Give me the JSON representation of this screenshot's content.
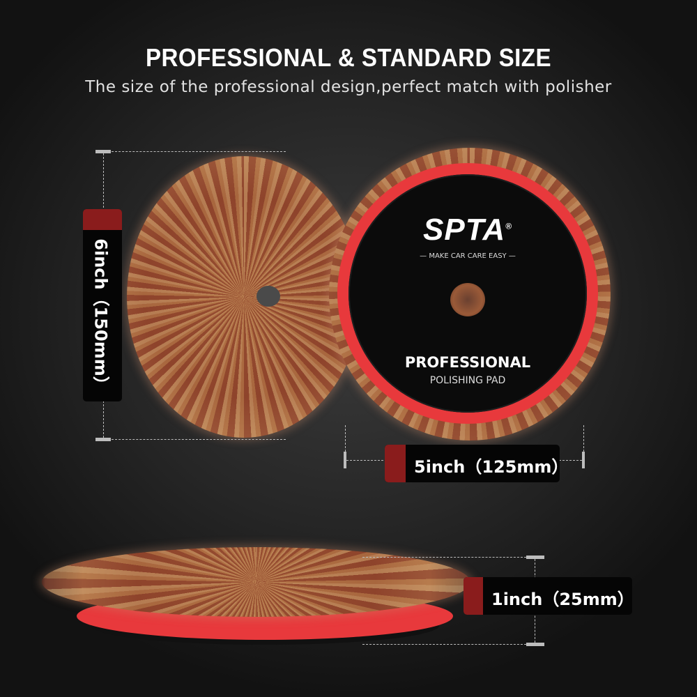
{
  "header": {
    "title": "PROFESSIONAL & STANDARD SIZE",
    "subtitle": "The size of the professional design,perfect match with polisher"
  },
  "pad_face": {
    "brand": "SPTA",
    "registered_mark": "®",
    "tagline": "MAKE CAR CARE EASY",
    "line1": "PROFESSIONAL",
    "line2": "POLISHING PAD"
  },
  "dimensions": {
    "outer_diameter": "6inch（150mm）",
    "backing_diameter": "5inch（125mm）",
    "thickness": "1inch（25mm）"
  },
  "colors": {
    "accent_red": "#8a1c1c",
    "pad_ring_red": "#e8393c",
    "fur_brown": "#9a5232"
  }
}
